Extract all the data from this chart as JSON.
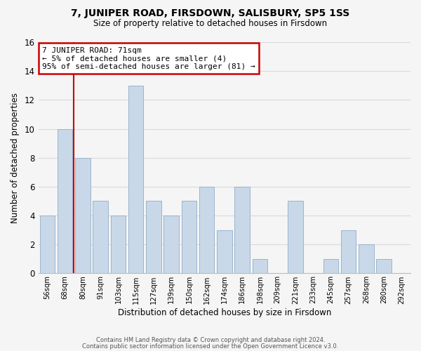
{
  "title": "7, JUNIPER ROAD, FIRSDOWN, SALISBURY, SP5 1SS",
  "subtitle": "Size of property relative to detached houses in Firsdown",
  "xlabel": "Distribution of detached houses by size in Firsdown",
  "ylabel": "Number of detached properties",
  "footer_lines": [
    "Contains HM Land Registry data © Crown copyright and database right 2024.",
    "Contains public sector information licensed under the Open Government Licence v3.0."
  ],
  "bins": [
    "56sqm",
    "68sqm",
    "80sqm",
    "91sqm",
    "103sqm",
    "115sqm",
    "127sqm",
    "139sqm",
    "150sqm",
    "162sqm",
    "174sqm",
    "186sqm",
    "198sqm",
    "209sqm",
    "221sqm",
    "233sqm",
    "245sqm",
    "257sqm",
    "268sqm",
    "280sqm",
    "292sqm"
  ],
  "values": [
    4,
    10,
    8,
    5,
    4,
    13,
    5,
    4,
    5,
    6,
    3,
    6,
    1,
    0,
    5,
    0,
    1,
    3,
    2,
    1,
    0
  ],
  "bar_color": "#c8d8e8",
  "bar_edgecolor": "#9ab4cc",
  "grid_color": "#d8d8e0",
  "annotation_line1": "7 JUNIPER ROAD: 71sqm",
  "annotation_line2": "← 5% of detached houses are smaller (4)",
  "annotation_line3": "95% of semi-detached houses are larger (81) →",
  "annotation_box_edgecolor": "#cc0000",
  "annotation_box_facecolor": "#ffffff",
  "subject_line_color": "#cc0000",
  "ylim": [
    0,
    16
  ],
  "yticks": [
    0,
    2,
    4,
    6,
    8,
    10,
    12,
    14,
    16
  ],
  "background_color": "#f5f5f5"
}
